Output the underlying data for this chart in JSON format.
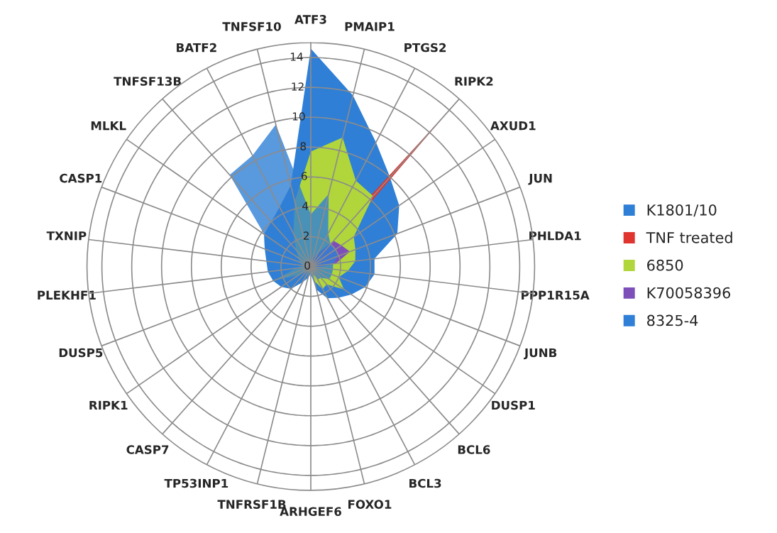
{
  "chart_data": {
    "type": "radar",
    "categories": [
      "ATF3",
      "PMAIP1",
      "PTGS2",
      "RIPK2",
      "AXUD1",
      "JUN",
      "PHLDA1",
      "PPP1R15A",
      "JUNB",
      "DUSP1",
      "BCL6",
      "BCL3",
      "FOXO1",
      "ARHGEF6",
      "TNFRSF1B",
      "TP53INP1",
      "CASP7",
      "RIPK1",
      "DUSP5",
      "PLEKHF1",
      "TXNIP",
      "CASP1",
      "MLKL",
      "TNFSF13B",
      "BATF2",
      "TNFSF10"
    ],
    "series": [
      {
        "name": "K1801/10",
        "color": "#2f7fd6",
        "values": [
          14.6,
          11.8,
          9.4,
          8.0,
          7.2,
          6.2,
          4.3,
          4.3,
          3.9,
          3.3,
          2.8,
          2.4,
          1.6,
          0.5,
          0.8,
          1.2,
          2.0,
          2.4,
          2.7,
          2.9,
          3.0,
          3.3,
          3.8,
          4.0,
          4.5,
          5.6
        ]
      },
      {
        "name": "TNF treated",
        "color": "#e0352f",
        "values": [
          0.3,
          0.5,
          1.0,
          14.1,
          1.0,
          0.3,
          0.3,
          0.3,
          0.3,
          0.3,
          0.3,
          0.3,
          0.3,
          0.3,
          0.3,
          0.3,
          0.3,
          0.3,
          0.3,
          0.3,
          0.3,
          0.3,
          0.3,
          0.3,
          0.3,
          0.3
        ]
      },
      {
        "name": "6850",
        "color": "#b0d63b",
        "values": [
          7.7,
          8.9,
          6.5,
          6.3,
          3.5,
          3.2,
          3.0,
          2.5,
          2.0,
          2.7,
          1.6,
          1.7,
          1.0,
          0.3,
          0.3,
          0.3,
          0.5,
          1.0,
          2.7,
          1.0,
          0.5,
          0.8,
          1.0,
          1.5,
          2.5,
          4.5
        ]
      },
      {
        "name": "K70058396",
        "color": "#7e4fb8",
        "values": [
          0.2,
          0.5,
          1.0,
          2.3,
          2.5,
          2.8,
          1.7,
          0.5,
          0.2,
          0.2,
          0.2,
          0.2,
          0.2,
          0.2,
          0.2,
          0.2,
          0.2,
          0.2,
          0.2,
          1.4,
          0.2,
          0.2,
          0.2,
          0.2,
          0.2,
          0.2
        ]
      },
      {
        "name": "8325-4",
        "color": "#2f7fd6",
        "values": [
          3.5,
          5.0,
          2.5,
          2.0,
          2.0,
          2.0,
          1.5,
          1.5,
          1.5,
          1.5,
          1.0,
          1.0,
          0.5,
          0.3,
          0.5,
          0.8,
          1.5,
          2.0,
          2.5,
          2.5,
          2.5,
          3.3,
          3.8,
          8.2,
          8.4,
          9.8
        ]
      }
    ],
    "ylim": [
      0,
      15
    ],
    "yticks": [
      0,
      2,
      4,
      6,
      8,
      10,
      12,
      14
    ],
    "grid": true,
    "legend": "right"
  }
}
